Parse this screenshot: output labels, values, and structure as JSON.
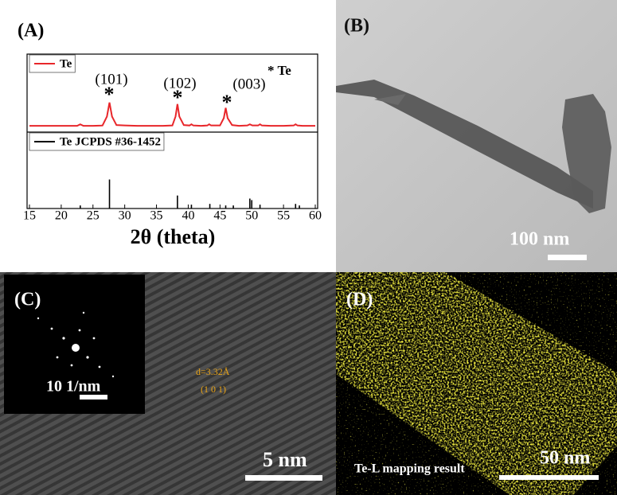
{
  "chart_data": {
    "type": "line",
    "panel_label": "(A)",
    "x_label": "2θ (theta)",
    "annotations": [
      "(101)",
      "(102)",
      "(003)"
    ],
    "peak_marker": "*",
    "marker_legend": "* Te",
    "xlim": [
      15,
      60
    ],
    "xticks": [
      15,
      20,
      25,
      30,
      35,
      40,
      45,
      50,
      55,
      60
    ],
    "series": [
      {
        "name": "Te",
        "color": "#e8262a",
        "style": "line",
        "ylim": [
          0,
          100
        ],
        "x": [
          15,
          17,
          19,
          21,
          22.5,
          23,
          23.5,
          25,
          26.5,
          27.2,
          27.6,
          28.0,
          28.7,
          30,
          32,
          34,
          36,
          37.5,
          38.0,
          38.3,
          38.6,
          39.3,
          40.2,
          40.5,
          40.8,
          42,
          43,
          43.3,
          43.6,
          45.0,
          45.6,
          45.9,
          46.2,
          46.9,
          48,
          49.3,
          49.7,
          50.1,
          51,
          51.3,
          51.6,
          53,
          55,
          56.6,
          56.9,
          57.2,
          58,
          60
        ],
        "values": [
          8,
          8,
          8,
          8,
          8,
          10,
          8,
          8,
          8.5,
          20,
          38,
          20,
          9,
          8.5,
          8,
          8,
          8,
          8.5,
          20,
          36,
          20,
          9,
          8.5,
          10,
          8.5,
          8,
          8.5,
          10,
          8.5,
          8.5,
          18,
          31,
          18,
          9,
          8,
          8.5,
          10,
          8.5,
          8.5,
          10,
          8.5,
          8,
          8,
          8.5,
          10,
          8.5,
          8,
          8
        ]
      },
      {
        "name": "Te JCPDS #36-1452",
        "color": "#000000",
        "style": "stick",
        "ylim": [
          0,
          100
        ],
        "x": [
          23.0,
          27.6,
          38.3,
          40.5,
          43.4,
          45.9,
          47.1,
          49.7,
          50.0,
          51.3,
          56.9,
          57.5
        ],
        "values": [
          4,
          38,
          17,
          5,
          6,
          4,
          4,
          13,
          11,
          5,
          6,
          4
        ]
      }
    ]
  },
  "panels": [
    {
      "label": "(B)",
      "scale_bar": "100 nm"
    },
    {
      "label": "(C)",
      "inset_scale_bar": "10 1/nm",
      "d_spacing": "d=3.32Å",
      "plane": "(1 0 1)",
      "scale_bar": "5 nm"
    },
    {
      "label": "(D)",
      "caption": "Te-L mapping result",
      "scale_bar": "50 nm"
    }
  ]
}
